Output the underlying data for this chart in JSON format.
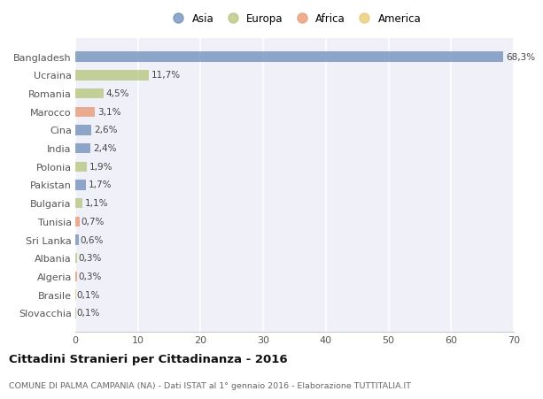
{
  "categories": [
    "Bangladesh",
    "Ucraina",
    "Romania",
    "Marocco",
    "Cina",
    "India",
    "Polonia",
    "Pakistan",
    "Bulgaria",
    "Tunisia",
    "Sri Lanka",
    "Albania",
    "Algeria",
    "Brasile",
    "Slovacchia"
  ],
  "values": [
    68.3,
    11.7,
    4.5,
    3.1,
    2.6,
    2.4,
    1.9,
    1.7,
    1.1,
    0.7,
    0.6,
    0.3,
    0.3,
    0.1,
    0.1
  ],
  "labels": [
    "68,3%",
    "11,7%",
    "4,5%",
    "3,1%",
    "2,6%",
    "2,4%",
    "1,9%",
    "1,7%",
    "1,1%",
    "0,7%",
    "0,6%",
    "0,3%",
    "0,3%",
    "0,1%",
    "0,1%"
  ],
  "colors": [
    "#6b8cba",
    "#b5c47a",
    "#b5c47a",
    "#e8956d",
    "#6b8cba",
    "#6b8cba",
    "#b5c47a",
    "#6b8cba",
    "#b5c47a",
    "#e8956d",
    "#6b8cba",
    "#b5c47a",
    "#e8956d",
    "#e8c96d",
    "#b5c47a"
  ],
  "legend_labels": [
    "Asia",
    "Europa",
    "Africa",
    "America"
  ],
  "legend_colors": [
    "#6b8cba",
    "#b5c47a",
    "#e8956d",
    "#e8c96d"
  ],
  "title": "Cittadini Stranieri per Cittadinanza - 2016",
  "subtitle": "COMUNE DI PALMA CAMPANIA (NA) - Dati ISTAT al 1° gennaio 2016 - Elaborazione TUTTITALIA.IT",
  "xlim": [
    0,
    70
  ],
  "xticks": [
    0,
    10,
    20,
    30,
    40,
    50,
    60,
    70
  ],
  "bg_color": "#ffffff",
  "plot_bg_color": "#f0f0f8",
  "grid_color": "#ffffff",
  "bar_height": 0.55,
  "bar_alpha": 0.75
}
